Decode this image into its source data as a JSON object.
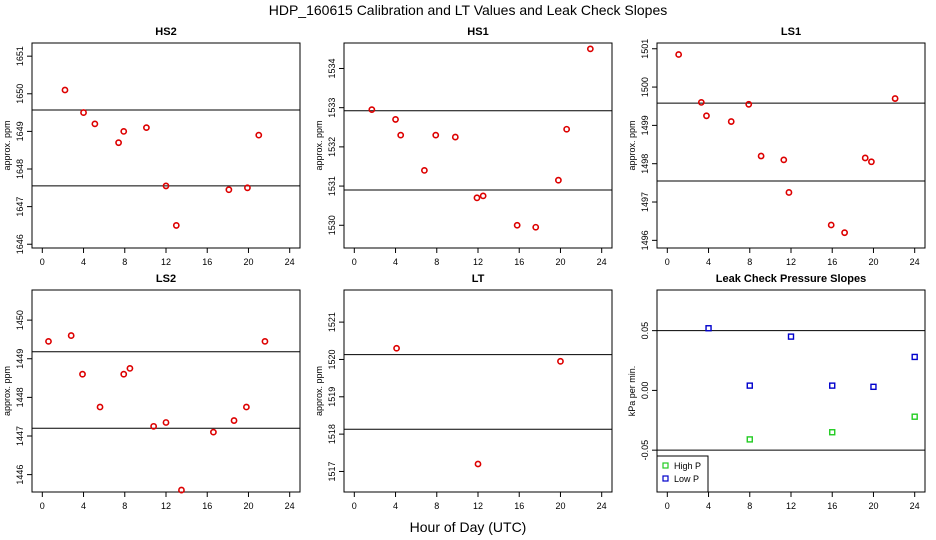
{
  "figure": {
    "title": "HDP_160615  Calibration and LT Values and Leak Check Slopes",
    "xlabel": "Hour of Day (UTC)"
  },
  "colors": {
    "red": "#dd0000",
    "green": "#22cc22",
    "blue": "#0000cc",
    "axis": "#000000"
  },
  "chart_data": [
    {
      "type": "scatter",
      "title": "HS2",
      "ylabel": "approx. ppm",
      "xlim": [
        -1,
        25
      ],
      "ylim": [
        1645.9,
        1651.35
      ],
      "xticks": [
        0,
        4,
        8,
        12,
        16,
        20,
        24
      ],
      "yticks": [
        1646,
        1647,
        1648,
        1649,
        1650,
        1651
      ],
      "hlines": [
        1649.57,
        1647.55
      ],
      "series": [
        {
          "name": "HS2",
          "color": "red",
          "marker": "circle",
          "points": [
            [
              2.2,
              1650.1
            ],
            [
              4.0,
              1649.5
            ],
            [
              5.1,
              1649.2
            ],
            [
              7.4,
              1648.7
            ],
            [
              7.9,
              1649.0
            ],
            [
              10.1,
              1649.1
            ],
            [
              12.0,
              1647.55
            ],
            [
              13.0,
              1646.5
            ],
            [
              18.1,
              1647.45
            ],
            [
              19.9,
              1647.5
            ],
            [
              21.0,
              1648.9
            ]
          ]
        }
      ]
    },
    {
      "type": "scatter",
      "title": "HS1",
      "ylabel": "approx. ppm",
      "xlim": [
        -1,
        25
      ],
      "ylim": [
        1529.42,
        1534.65
      ],
      "xticks": [
        0,
        4,
        8,
        12,
        16,
        20,
        24
      ],
      "yticks": [
        1530,
        1531,
        1532,
        1533,
        1534
      ],
      "hlines": [
        1532.92,
        1530.9
      ],
      "series": [
        {
          "name": "HS1",
          "color": "red",
          "marker": "circle",
          "points": [
            [
              1.7,
              1532.95
            ],
            [
              4.0,
              1532.7
            ],
            [
              4.5,
              1532.3
            ],
            [
              6.8,
              1531.4
            ],
            [
              7.9,
              1532.3
            ],
            [
              9.8,
              1532.25
            ],
            [
              11.9,
              1530.7
            ],
            [
              12.5,
              1530.75
            ],
            [
              15.8,
              1530.0
            ],
            [
              17.6,
              1529.95
            ],
            [
              19.8,
              1531.15
            ],
            [
              20.6,
              1532.45
            ],
            [
              22.9,
              1534.5
            ]
          ]
        }
      ]
    },
    {
      "type": "scatter",
      "title": "LS1",
      "ylabel": "approx. ppm",
      "xlim": [
        -1,
        25
      ],
      "ylim": [
        1495.8,
        1501.15
      ],
      "xticks": [
        0,
        4,
        8,
        12,
        16,
        20,
        24
      ],
      "yticks": [
        1496,
        1497,
        1498,
        1499,
        1500,
        1501
      ],
      "hlines": [
        1499.58,
        1497.55
      ],
      "series": [
        {
          "name": "LS1",
          "color": "red",
          "marker": "circle",
          "points": [
            [
              1.1,
              1500.85
            ],
            [
              3.3,
              1499.6
            ],
            [
              3.8,
              1499.25
            ],
            [
              6.2,
              1499.1
            ],
            [
              7.9,
              1499.55
            ],
            [
              9.1,
              1498.2
            ],
            [
              11.3,
              1498.1
            ],
            [
              11.8,
              1497.25
            ],
            [
              15.9,
              1496.4
            ],
            [
              17.2,
              1496.2
            ],
            [
              19.2,
              1498.15
            ],
            [
              19.8,
              1498.05
            ],
            [
              22.1,
              1499.7
            ]
          ]
        }
      ]
    },
    {
      "type": "scatter",
      "title": "LS2",
      "ylabel": "approx. ppm",
      "xlim": [
        -1,
        25
      ],
      "ylim": [
        1445.55,
        1450.78
      ],
      "xticks": [
        0,
        4,
        8,
        12,
        16,
        20,
        24
      ],
      "yticks": [
        1446,
        1447,
        1448,
        1449,
        1450
      ],
      "hlines": [
        1449.18,
        1447.2
      ],
      "series": [
        {
          "name": "LS2",
          "color": "red",
          "marker": "circle",
          "points": [
            [
              0.6,
              1449.45
            ],
            [
              2.8,
              1449.6
            ],
            [
              3.9,
              1448.6
            ],
            [
              5.6,
              1447.75
            ],
            [
              7.9,
              1448.6
            ],
            [
              8.5,
              1448.75
            ],
            [
              10.8,
              1447.25
            ],
            [
              12.0,
              1447.35
            ],
            [
              13.5,
              1445.6
            ],
            [
              16.6,
              1447.1
            ],
            [
              18.6,
              1447.4
            ],
            [
              19.8,
              1447.75
            ],
            [
              21.6,
              1449.45
            ]
          ]
        }
      ]
    },
    {
      "type": "scatter",
      "title": "LT",
      "ylabel": "approx. ppm",
      "xlim": [
        -1,
        25
      ],
      "ylim": [
        1516.45,
        1521.86
      ],
      "xticks": [
        0,
        4,
        8,
        12,
        16,
        20,
        24
      ],
      "yticks": [
        1517,
        1518,
        1519,
        1520,
        1521
      ],
      "hlines": [
        1520.13,
        1518.13
      ],
      "series": [
        {
          "name": "LT",
          "color": "red",
          "marker": "circle",
          "points": [
            [
              4.1,
              1520.3
            ],
            [
              12.0,
              1517.2
            ],
            [
              20.0,
              1519.95
            ]
          ]
        }
      ]
    },
    {
      "type": "scatter",
      "title": "Leak Check Pressure Slopes",
      "ylabel": "kPa per min.",
      "xlim": [
        -1,
        25
      ],
      "ylim": [
        -0.085,
        0.084
      ],
      "xticks": [
        0,
        4,
        8,
        12,
        16,
        20,
        24
      ],
      "yticks": [
        -0.05,
        0.0,
        0.05
      ],
      "ytick_labels": [
        "-0.05",
        "0.00",
        "0.05"
      ],
      "hlines": [
        0.05,
        -0.05
      ],
      "legend": {
        "position": "bottom-left",
        "entries": [
          {
            "label": "High P",
            "color": "green"
          },
          {
            "label": "Low P",
            "color": "blue"
          }
        ]
      },
      "series": [
        {
          "name": "High P",
          "color": "green",
          "marker": "square",
          "points": [
            [
              8.0,
              -0.041
            ],
            [
              16.0,
              -0.035
            ],
            [
              24.0,
              -0.022
            ]
          ]
        },
        {
          "name": "Low P",
          "color": "blue",
          "marker": "square",
          "points": [
            [
              4.0,
              0.052
            ],
            [
              8.0,
              0.004
            ],
            [
              12.0,
              0.045
            ],
            [
              16.0,
              0.004
            ],
            [
              20.0,
              0.003
            ],
            [
              24.0,
              0.028
            ]
          ]
        }
      ]
    }
  ]
}
